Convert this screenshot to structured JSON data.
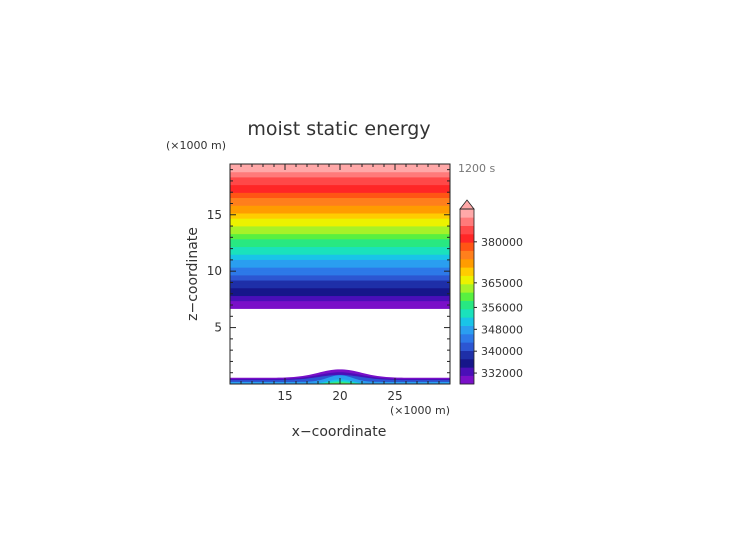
{
  "chart_data": {
    "type": "heatmap",
    "title": "moist static energy",
    "xlabel": "x−coordinate",
    "ylabel": "z−coordinate",
    "x_unit_label": "(×1000 m)",
    "y_unit_label": "(×1000 m)",
    "time_label": "1200 s",
    "xlim": [
      10,
      30
    ],
    "ylim": [
      0,
      19.5
    ],
    "xticks": [
      15,
      20,
      25
    ],
    "yticks": [
      5,
      10,
      15
    ],
    "colorbar_ticks": [
      332000,
      340000,
      348000,
      356000,
      365000,
      380000
    ],
    "colorbar_range": [
      328000,
      392000
    ],
    "upper_field": {
      "z_bottom": 6.7,
      "z_top": 19.5,
      "value_at_bottom": 328000,
      "value_at_top": 392000
    },
    "surface_ridge": {
      "center_x": 20,
      "peak_height": 1.3,
      "edge_height": 0.55,
      "width": 3.0
    },
    "colors": [
      "#7a10c8",
      "#4a0fb8",
      "#16168a",
      "#1e2fa8",
      "#2c56d2",
      "#2d79e8",
      "#2a9ef0",
      "#19c4e8",
      "#1ae2bc",
      "#28e882",
      "#58f040",
      "#a6f228",
      "#ecf200",
      "#ffcc00",
      "#ff9c00",
      "#ff7f1c",
      "#ff5514",
      "#ff2626",
      "#ff4848",
      "#ff7a7a",
      "#ffa8a8"
    ]
  }
}
